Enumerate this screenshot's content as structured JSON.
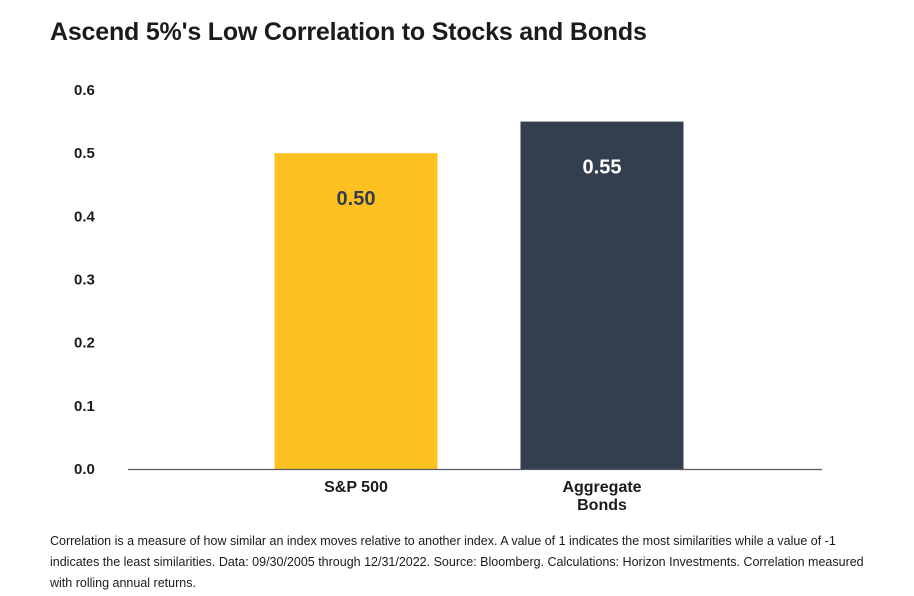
{
  "chart_data": {
    "type": "bar",
    "title": "Ascend 5%'s Low Correlation to Stocks and Bonds",
    "categories": [
      "S&P 500",
      "Aggregate Bonds"
    ],
    "values": [
      0.5,
      0.55
    ],
    "value_labels": [
      "0.50",
      "0.55"
    ],
    "ylim": [
      0,
      0.6
    ],
    "yticks": [
      "0.0",
      "0.1",
      "0.2",
      "0.3",
      "0.4",
      "0.5",
      "0.6"
    ],
    "xlabel": "",
    "ylabel": "",
    "grid": false,
    "colors": [
      "#FDC122",
      "#333E4F"
    ],
    "label_colors": [
      "#333E4F",
      "#FFFFFF"
    ]
  },
  "footnote": "Correlation is a measure of how similar an index moves relative to another index. A value of 1 indicates the most similarities while a value of -1 indicates the least similarities. Data: 09/30/2005 through 12/31/2022. Source: Bloomberg. Calculations: Horizon Investments. Correlation measured with rolling annual returns."
}
